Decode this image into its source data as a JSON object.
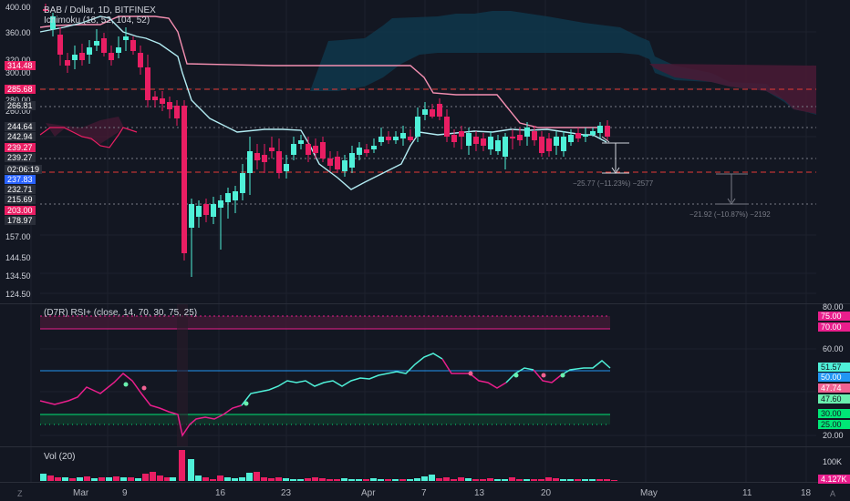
{
  "main_legend": {
    "symbol": "BAB / Dollar, 1D, BITFINEX",
    "indicator": "Ichimoku (18, 52, 104, 52)"
  },
  "rsi_legend": "(D7R) RSI+ (close, 14, 70, 30, 75, 25)",
  "vol_legend": "Vol (20)",
  "left_axis_ticks": [
    "400.00",
    "360.00",
    "320.00",
    "300.00",
    "280.00",
    "260.00",
    "157.00",
    "144.50",
    "134.50",
    "124.50"
  ],
  "left_price_tags": [
    {
      "text": "314.48",
      "color": "#e91e63"
    },
    {
      "text": "285.68",
      "color": "#e91e63"
    },
    {
      "text": "266.81",
      "color": "#2a2e39"
    },
    {
      "text": "244.64",
      "color": "#2a2e39"
    },
    {
      "text": "242.94",
      "color": "#2a2e39"
    },
    {
      "text": "239.27",
      "color": "#e91e63"
    },
    {
      "text": "239.27",
      "color": "#2a2e39"
    },
    {
      "text": "02:06:19",
      "color": "#2a2e39"
    },
    {
      "text": "237.83",
      "color": "#2962ff"
    },
    {
      "text": "232.71",
      "color": "#2a2e39"
    },
    {
      "text": "215.69",
      "color": "#2a2e39"
    },
    {
      "text": "203.00",
      "color": "#e91e63"
    },
    {
      "text": "178.97",
      "color": "#2a2e39"
    }
  ],
  "rsi_axis": {
    "ticks": [
      "80.00",
      "60.00",
      "20.00"
    ],
    "tags": [
      {
        "text": "75.00",
        "bg": "#e91e8c",
        "fg": "#ffffff"
      },
      {
        "text": "70.00",
        "bg": "#e91e8c",
        "fg": "#ffffff"
      },
      {
        "text": "51.57",
        "bg": "#4ff0d8",
        "fg": "#131722"
      },
      {
        "text": "50.00",
        "bg": "#2196f3",
        "fg": "#ffffff"
      },
      {
        "text": "47.74",
        "bg": "#f06292",
        "fg": "#ffffff"
      },
      {
        "text": "47.60",
        "bg": "#69f0ae",
        "fg": "#131722"
      },
      {
        "text": "30.00",
        "bg": "#00e676",
        "fg": "#131722"
      },
      {
        "text": "25.00",
        "bg": "#00e676",
        "fg": "#131722"
      }
    ]
  },
  "vol_axis": {
    "ticks": [
      "100K"
    ],
    "tag": {
      "text": "4.127K",
      "bg": "#e91e8c",
      "fg": "#ffffff"
    }
  },
  "date_labels": [
    "Mar",
    "9",
    "16",
    "23",
    "Apr",
    "7",
    "13",
    "20",
    "May",
    "11",
    "18"
  ],
  "measure_labels": [
    "−25.77 (−11.23%) −2577",
    "−21.92 (−10.87%) −2192"
  ],
  "corner_icons": {
    "left": "Z",
    "right": "A"
  },
  "colors": {
    "background": "#131722",
    "bull": "#4ff0d8",
    "bear": "#e91e63",
    "tenkan": "#f48fb1",
    "kijun": "#b2ebf2",
    "cloud_bull": "#0f3a4f",
    "cloud_bear": "#4a1a35",
    "rsi_bull": "#4ff0d8",
    "rsi_bear": "#e91e8c",
    "dashed_red": "#e53935"
  }
}
